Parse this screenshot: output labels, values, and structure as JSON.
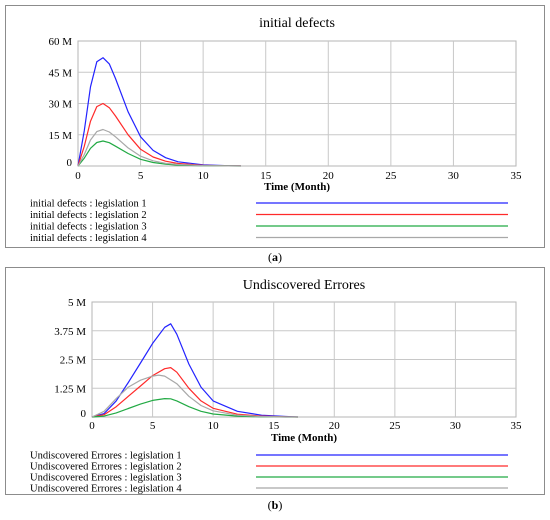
{
  "captions": {
    "a": "a",
    "b": "b"
  },
  "colors": {
    "legislation1": "#2323ff",
    "legislation2": "#ff2a2a",
    "legislation3": "#22aa44",
    "legislation4": "#a8a8a8"
  },
  "chart_data": [
    {
      "type": "line",
      "title": "initial defects",
      "xlabel": "Time (Month)",
      "ylabel": "",
      "xlim": [
        0,
        35
      ],
      "ylim": [
        0,
        60000000
      ],
      "xticks": [
        "0",
        "5",
        "10",
        "15",
        "20",
        "25",
        "30",
        "35"
      ],
      "yticks": [
        "0",
        "15 M",
        "30 M",
        "45 M",
        "60 M"
      ],
      "grid": true,
      "legend_position": "bottom",
      "series": [
        {
          "name": "initial defects : legislation 1",
          "color": "#2323ff",
          "x": [
            0,
            0.5,
            1,
            1.5,
            2,
            2.5,
            3,
            4,
            5,
            6,
            7,
            8,
            10,
            12,
            13
          ],
          "y": [
            0,
            17000000,
            38000000,
            50000000,
            52000000,
            49000000,
            42000000,
            26000000,
            14000000,
            7500000,
            4000000,
            2000000,
            600000,
            150000,
            50000
          ]
        },
        {
          "name": "initial defects : legislation 2",
          "color": "#ff2a2a",
          "x": [
            0,
            0.5,
            1,
            1.5,
            2,
            2.5,
            3,
            4,
            5,
            6,
            7,
            8,
            10,
            12,
            13
          ],
          "y": [
            0,
            9500000,
            21500000,
            28500000,
            30000000,
            28000000,
            24000000,
            15000000,
            8000000,
            4300000,
            2300000,
            1200000,
            350000,
            80000,
            30000
          ]
        },
        {
          "name": "initial defects : legislation 3",
          "color": "#22aa44",
          "x": [
            0,
            0.5,
            1,
            1.5,
            2,
            2.5,
            3,
            4,
            5,
            6,
            7,
            8,
            10,
            12,
            13
          ],
          "y": [
            0,
            3800000,
            8500000,
            11300000,
            12000000,
            11200000,
            9500000,
            6000000,
            3200000,
            1700000,
            900000,
            450000,
            130000,
            30000,
            10000
          ]
        },
        {
          "name": "initial defects : legislation 4",
          "color": "#a8a8a8",
          "x": [
            0,
            0.5,
            1,
            1.5,
            2,
            2.5,
            3,
            4,
            5,
            6,
            7,
            8,
            10,
            12,
            13
          ],
          "y": [
            0,
            5500000,
            12500000,
            16500000,
            17500000,
            16300000,
            14000000,
            8700000,
            4700000,
            2500000,
            1300000,
            700000,
            200000,
            50000,
            15000
          ]
        }
      ]
    },
    {
      "type": "line",
      "title": "Undiscovered Errores",
      "xlabel": "Time (Month)",
      "ylabel": "",
      "xlim": [
        0,
        35
      ],
      "ylim": [
        0,
        5000000
      ],
      "xticks": [
        "0",
        "5",
        "10",
        "15",
        "20",
        "25",
        "30",
        "35"
      ],
      "yticks": [
        "0",
        "1.25 M",
        "2.5 M",
        "3.75 M",
        "5 M"
      ],
      "grid": true,
      "legend_position": "bottom",
      "series": [
        {
          "name": "Undiscovered Errores : legislation 1",
          "color": "#2323ff",
          "x": [
            0,
            1,
            2,
            3,
            4,
            5,
            6,
            6.5,
            7,
            8,
            9,
            10,
            12,
            14,
            16,
            17
          ],
          "y": [
            0,
            150000,
            700000,
            1500000,
            2350000,
            3200000,
            3900000,
            4050000,
            3600000,
            2300000,
            1300000,
            700000,
            250000,
            80000,
            20000,
            0
          ]
        },
        {
          "name": "Undiscovered Errores : legislation 2",
          "color": "#ff2a2a",
          "x": [
            0,
            1,
            2,
            3,
            4,
            5,
            6,
            6.5,
            7,
            8,
            9,
            10,
            12,
            14,
            16,
            17
          ],
          "y": [
            0,
            100000,
            450000,
            900000,
            1350000,
            1800000,
            2100000,
            2150000,
            1950000,
            1250000,
            700000,
            380000,
            120000,
            40000,
            10000,
            0
          ]
        },
        {
          "name": "Undiscovered Errores : legislation 3",
          "color": "#22aa44",
          "x": [
            0,
            1,
            2,
            3,
            4,
            5,
            6,
            6.5,
            7,
            8,
            9,
            10,
            12,
            14,
            16,
            17
          ],
          "y": [
            0,
            40000,
            180000,
            370000,
            560000,
            720000,
            800000,
            790000,
            700000,
            450000,
            250000,
            130000,
            40000,
            10000,
            0,
            0
          ]
        },
        {
          "name": "Undiscovered Errores : legislation 4",
          "color": "#a8a8a8",
          "x": [
            0,
            1,
            2,
            3,
            4,
            5,
            5.5,
            6,
            7,
            8,
            9,
            10,
            12,
            14,
            16,
            17
          ],
          "y": [
            0,
            250000,
            800000,
            1300000,
            1600000,
            1780000,
            1820000,
            1780000,
            1450000,
            900000,
            500000,
            270000,
            80000,
            20000,
            0,
            0
          ]
        }
      ]
    }
  ]
}
